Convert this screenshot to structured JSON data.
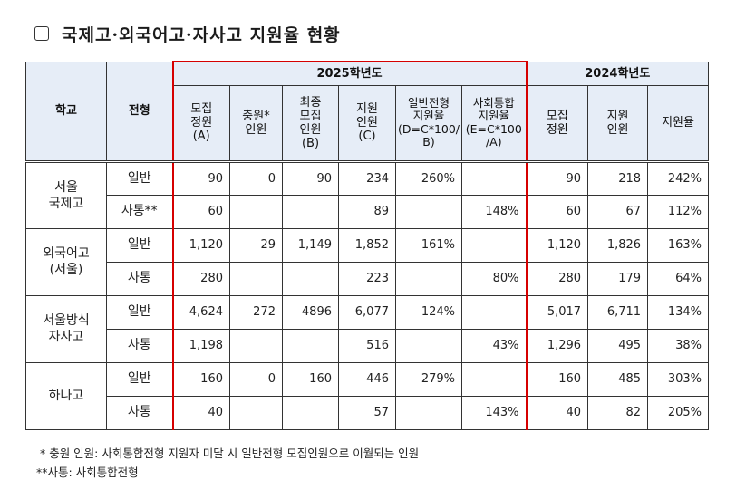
{
  "title": "국제고·외국어고·자사고 지원율 현황",
  "table": {
    "headers": {
      "school": "학교",
      "type": "전형",
      "year2025": "2025학년도",
      "year2024": "2024학년도",
      "cols2025": [
        [
          "모집",
          "정원",
          "(A)"
        ],
        [
          "충원*",
          "인원"
        ],
        [
          "최종",
          "모집",
          "인원",
          "(B)"
        ],
        [
          "지원",
          "인원",
          "(C)"
        ],
        [
          "일반전형",
          "지원율",
          "(D=C*100/",
          "B)"
        ],
        [
          "사회통합",
          "지원율",
          "(E=C*100",
          "/A)"
        ]
      ],
      "cols2024": [
        [
          "모집",
          "정원"
        ],
        [
          "지원",
          "인원"
        ],
        [
          "지원율"
        ]
      ]
    },
    "schools": [
      {
        "name": [
          "서울",
          "국제고"
        ],
        "rows": [
          {
            "type": "일반",
            "values": [
              "90",
              "0",
              "90",
              "234",
              "260%",
              "",
              "90",
              "218",
              "242%"
            ]
          },
          {
            "type": "사통**",
            "values": [
              "60",
              "",
              "",
              "89",
              "",
              "148%",
              "60",
              "67",
              "112%"
            ]
          }
        ]
      },
      {
        "name": [
          "외국어고",
          "(서울)"
        ],
        "rows": [
          {
            "type": "일반",
            "values": [
              "1,120",
              "29",
              "1,149",
              "1,852",
              "161%",
              "",
              "1,120",
              "1,826",
              "163%"
            ]
          },
          {
            "type": "사통",
            "values": [
              "280",
              "",
              "",
              "223",
              "",
              "80%",
              "280",
              "179",
              "64%"
            ]
          }
        ]
      },
      {
        "name": [
          "서울방식",
          "자사고"
        ],
        "rows": [
          {
            "type": "일반",
            "values": [
              "4,624",
              "272",
              "4896",
              "6,077",
              "124%",
              "",
              "5,017",
              "6,711",
              "134%"
            ]
          },
          {
            "type": "사통",
            "values": [
              "1,198",
              "",
              "",
              "516",
              "",
              "43%",
              "1,296",
              "495",
              "38%"
            ]
          }
        ]
      },
      {
        "name": [
          "하나고"
        ],
        "rows": [
          {
            "type": "일반",
            "values": [
              "160",
              "0",
              "160",
              "446",
              "279%",
              "",
              "160",
              "485",
              "303%"
            ]
          },
          {
            "type": "사통",
            "values": [
              "40",
              "",
              "",
              "57",
              "",
              "143%",
              "40",
              "82",
              "205%"
            ]
          }
        ]
      }
    ]
  },
  "footnotes": [
    " * 충원 인원: 사회통합전형 지원자 미달 시 일반전형 모집인원으로 이월되는 인원",
    "**사통: 사회통합전형"
  ],
  "colors": {
    "header_bg": "#e6edf7",
    "frame_red": "#d60000",
    "divider_blue": "#1a1aee"
  }
}
